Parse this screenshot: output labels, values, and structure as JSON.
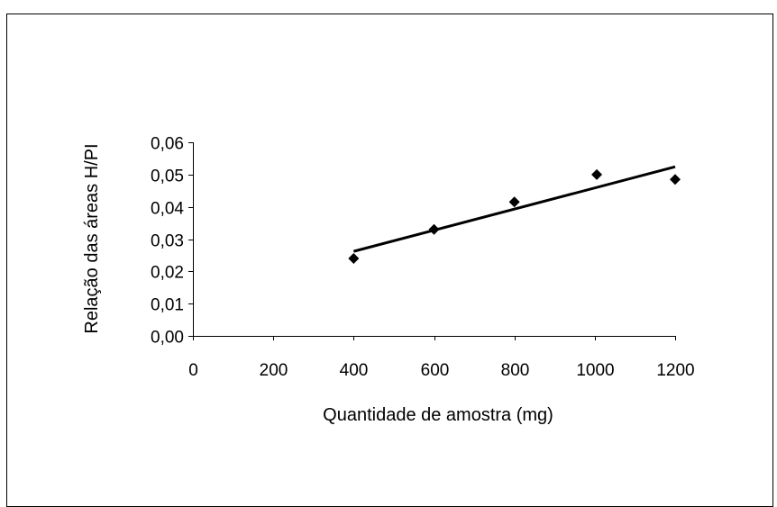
{
  "chart_data": {
    "type": "scatter",
    "title": "",
    "xlabel": "Quantidade de amostra (mg)",
    "ylabel": "Relação das áreas H/PI",
    "xlim": [
      0,
      1200
    ],
    "ylim": [
      0,
      0.06
    ],
    "x_ticks": [
      0,
      200,
      400,
      600,
      800,
      1000,
      1200
    ],
    "x_tick_labels": [
      "0",
      "200",
      "400",
      "600",
      "800",
      "1000",
      "1200"
    ],
    "y_ticks": [
      0,
      0.01,
      0.02,
      0.03,
      0.04,
      0.05,
      0.06
    ],
    "y_tick_labels": [
      "0,00",
      "0,01",
      "0,02",
      "0,03",
      "0,04",
      "0,05",
      "0,06"
    ],
    "grid": false,
    "legend": "none",
    "series": [
      {
        "marker": "diamond",
        "color": "#000000",
        "points": [
          {
            "x": 400,
            "y": 0.024
          },
          {
            "x": 600,
            "y": 0.033
          },
          {
            "x": 800,
            "y": 0.0415
          },
          {
            "x": 1005,
            "y": 0.05
          },
          {
            "x": 1200,
            "y": 0.0485
          }
        ]
      }
    ],
    "trendline": {
      "type": "linear",
      "color": "#000000",
      "x_start": 400,
      "x_end": 1200,
      "y_start": 0.0262,
      "y_end": 0.0524
    }
  }
}
